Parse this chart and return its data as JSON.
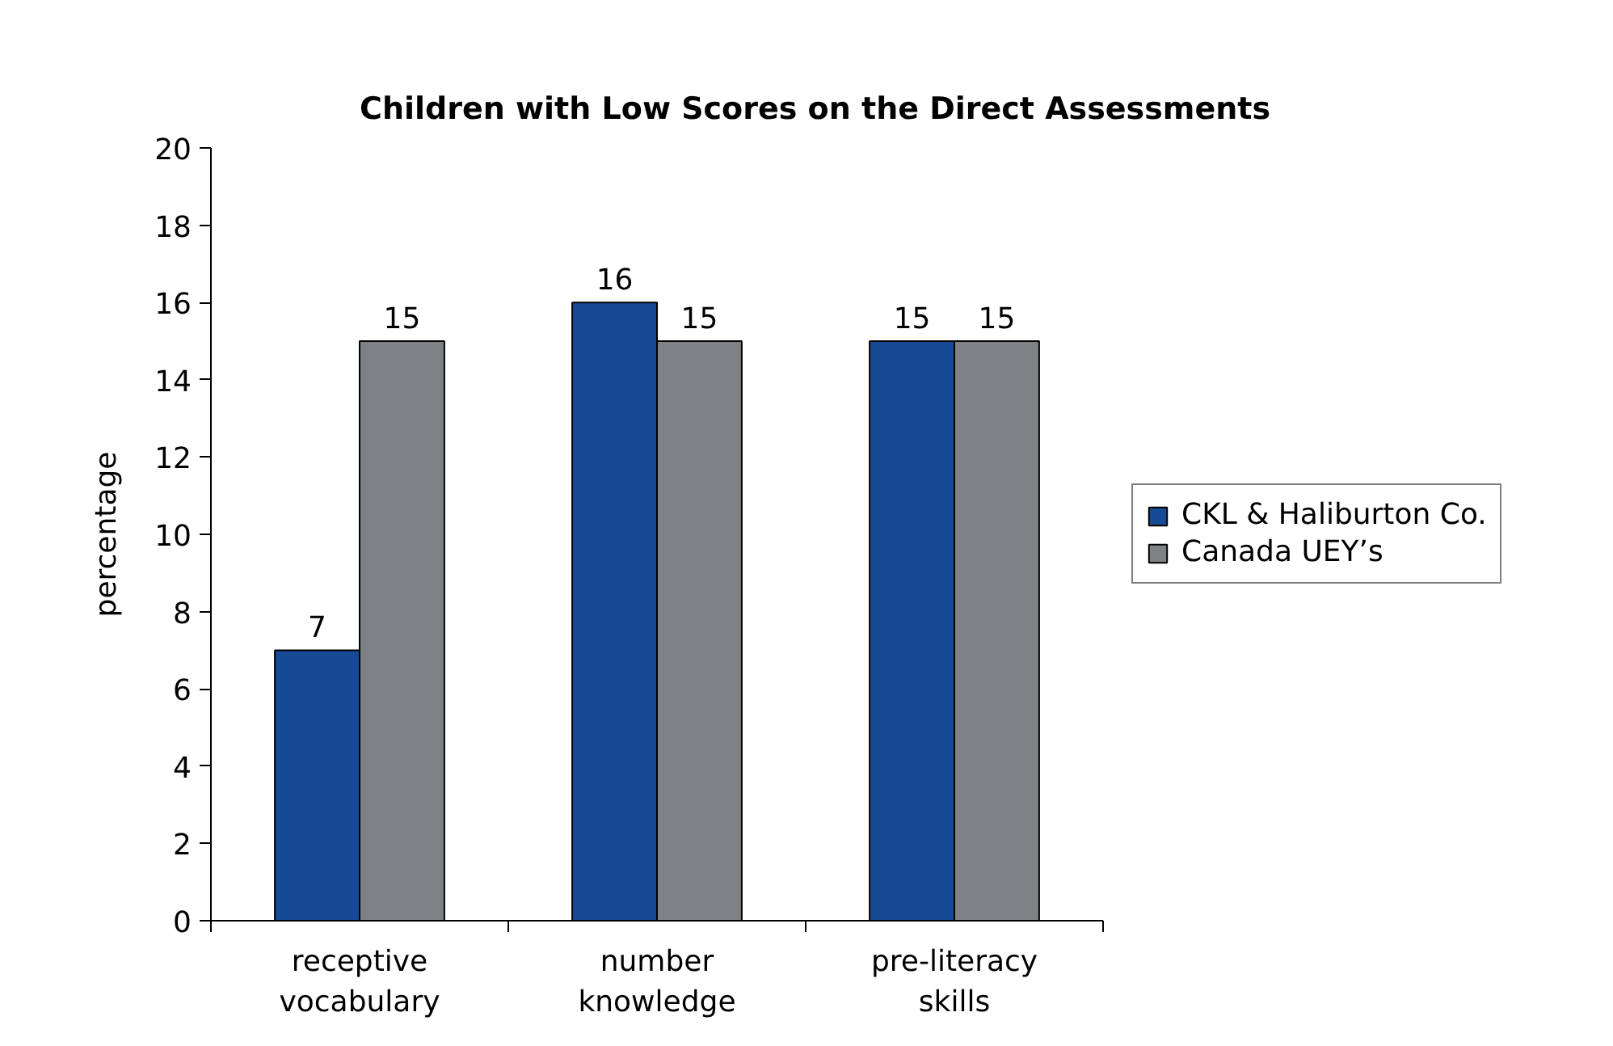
{
  "chart_data": {
    "type": "bar",
    "title": "Children with Low Scores on the Direct Assessments",
    "ylabel": "percentage",
    "categories": [
      "receptive vocabulary",
      "number knowledge",
      "pre-literacy skills"
    ],
    "series": [
      {
        "name": "CKL & Haliburton Co.",
        "color": "#164a94",
        "values": [
          7,
          16,
          15
        ]
      },
      {
        "name": "Canada UEY’s",
        "color": "#7f8285",
        "values": [
          15,
          15,
          15
        ]
      }
    ],
    "ylim": [
      0,
      20
    ],
    "yticks": [
      0,
      2,
      4,
      6,
      8,
      10,
      12,
      14,
      16,
      18,
      20
    ],
    "data_labels": true,
    "legend": "right"
  }
}
